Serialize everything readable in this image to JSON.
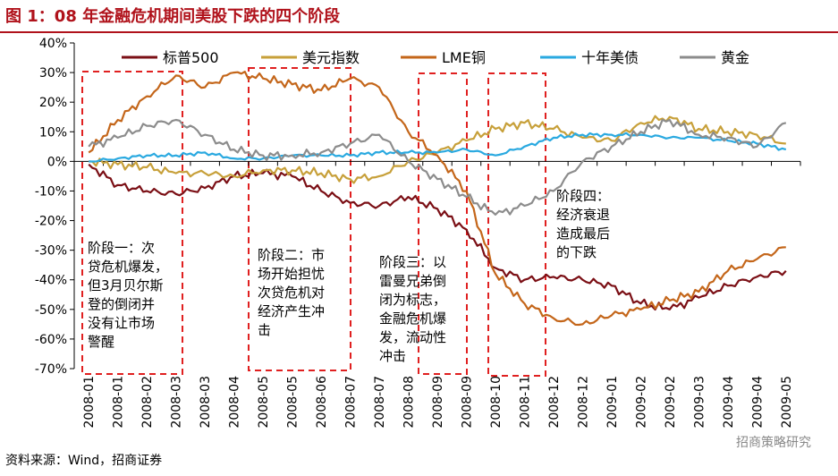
{
  "title": "图 1：08 年金融危机期间美股下跌的四个阶段",
  "source": "资料来源：Wind，招商证券",
  "watermark": "招商策略研究",
  "colors": {
    "sp500": "#7b0f15",
    "usd": "#c7a03a",
    "copper": "#c4661a",
    "ust10": "#2aa9e0",
    "gold": "#8c8c8c",
    "box": "#e02020",
    "title": "#b0121b"
  },
  "chart_data": {
    "type": "line",
    "title": "08 年金融危机期间美股下跌的四个阶段",
    "x": [
      "2008-01",
      "2008-01",
      "2008-02",
      "2008-03",
      "2008-03",
      "2008-04",
      "2008-05",
      "2008-05",
      "2008-06",
      "2008-07",
      "2008-07",
      "2008-08",
      "2008-09",
      "2008-09",
      "2008-10",
      "2008-11",
      "2008-12",
      "2008-12",
      "2009-01",
      "2009-02",
      "2009-02",
      "2009-03",
      "2009-04",
      "2009-04",
      "2009-05"
    ],
    "ylim": [
      -70,
      40
    ],
    "yticks": [
      -70,
      -60,
      -50,
      -40,
      -30,
      -20,
      -10,
      0,
      10,
      20,
      30,
      40
    ],
    "ytick_labels": [
      "-70%",
      "-60%",
      "-50%",
      "-40%",
      "-30%",
      "-20%",
      "-10%",
      "0%",
      "10%",
      "20%",
      "30%",
      "40%"
    ],
    "legend": [
      "标普500",
      "美元指数",
      "LME铜",
      "十年美债",
      "黄金"
    ],
    "series": [
      {
        "name": "标普500",
        "color_key": "sp500",
        "values": [
          -1,
          -8,
          -10,
          -11,
          -9,
          -5,
          -4,
          -5,
          -10,
          -14,
          -15,
          -12,
          -16,
          -23,
          -36,
          -40,
          -39,
          -40,
          -42,
          -48,
          -50,
          -46,
          -42,
          -39,
          -37
        ]
      },
      {
        "name": "美元指数",
        "color_key": "usd",
        "values": [
          0,
          -1,
          -2,
          -4,
          -4,
          -5,
          -3,
          -3,
          -4,
          -6,
          -5,
          0,
          3,
          7,
          11,
          13,
          11,
          8,
          7,
          13,
          15,
          11,
          10,
          9,
          6
        ]
      },
      {
        "name": "LME铜",
        "color_key": "copper",
        "values": [
          3,
          14,
          22,
          29,
          25,
          30,
          28,
          26,
          24,
          28,
          25,
          10,
          2,
          -10,
          -38,
          -48,
          -53,
          -55,
          -52,
          -50,
          -47,
          -44,
          -37,
          -33,
          -29
        ]
      },
      {
        "name": "十年美债",
        "color_key": "ust10",
        "values": [
          0,
          1,
          2,
          2,
          3,
          1,
          1,
          2,
          2,
          2,
          3,
          3,
          3,
          4,
          2,
          5,
          8,
          9,
          9,
          9,
          8,
          8,
          7,
          6,
          4
        ]
      },
      {
        "name": "黄金",
        "color_key": "gold",
        "values": [
          5,
          8,
          12,
          14,
          9,
          4,
          2,
          2,
          3,
          6,
          9,
          0,
          -6,
          -12,
          -18,
          -15,
          -10,
          0,
          5,
          10,
          14,
          9,
          8,
          5,
          13
        ]
      }
    ],
    "annotations": [
      {
        "text": [
          "阶段一：次",
          "贷危机爆发，",
          "但3月贝尔斯",
          "登的倒闭并",
          "没有让市场",
          "警醒"
        ]
      },
      {
        "text": [
          "阶段二：市",
          "场开始担忧",
          "次贷危机对",
          "经济产生冲",
          "击"
        ]
      },
      {
        "text": [
          "阶段三：以",
          "雷曼兄弟倒",
          "闭为标志，",
          "金融危机爆",
          "发，流动性",
          "冲击"
        ]
      },
      {
        "text": [
          "阶段四：",
          "经济衰退",
          "造成最后",
          "的下跌"
        ]
      }
    ]
  }
}
